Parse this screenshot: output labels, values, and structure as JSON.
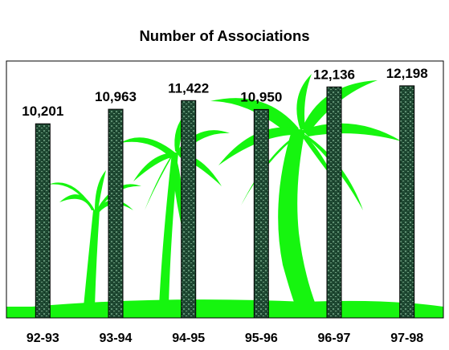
{
  "chart_data": {
    "type": "bar",
    "title": "Number of Associations",
    "xlabel": "",
    "ylabel": "",
    "categories": [
      "92-93",
      "93-94",
      "94-95",
      "95-96",
      "96-97",
      "97-98"
    ],
    "values": [
      10201,
      10963,
      11422,
      10950,
      12136,
      12198
    ],
    "value_labels": [
      "10,201",
      "10,963",
      "11,422",
      "10,950",
      "12,136",
      "12,198"
    ],
    "ylim": [
      0,
      13500
    ],
    "grid": false,
    "legend": "none",
    "background_image": "palm-trees-silhouette",
    "colors": {
      "bar_fill": "#1f4a33",
      "bar_highlight": "#5f8f72",
      "bar_stroke": "#000000",
      "palm_green": "#16f50f",
      "frame": "#000000"
    }
  }
}
